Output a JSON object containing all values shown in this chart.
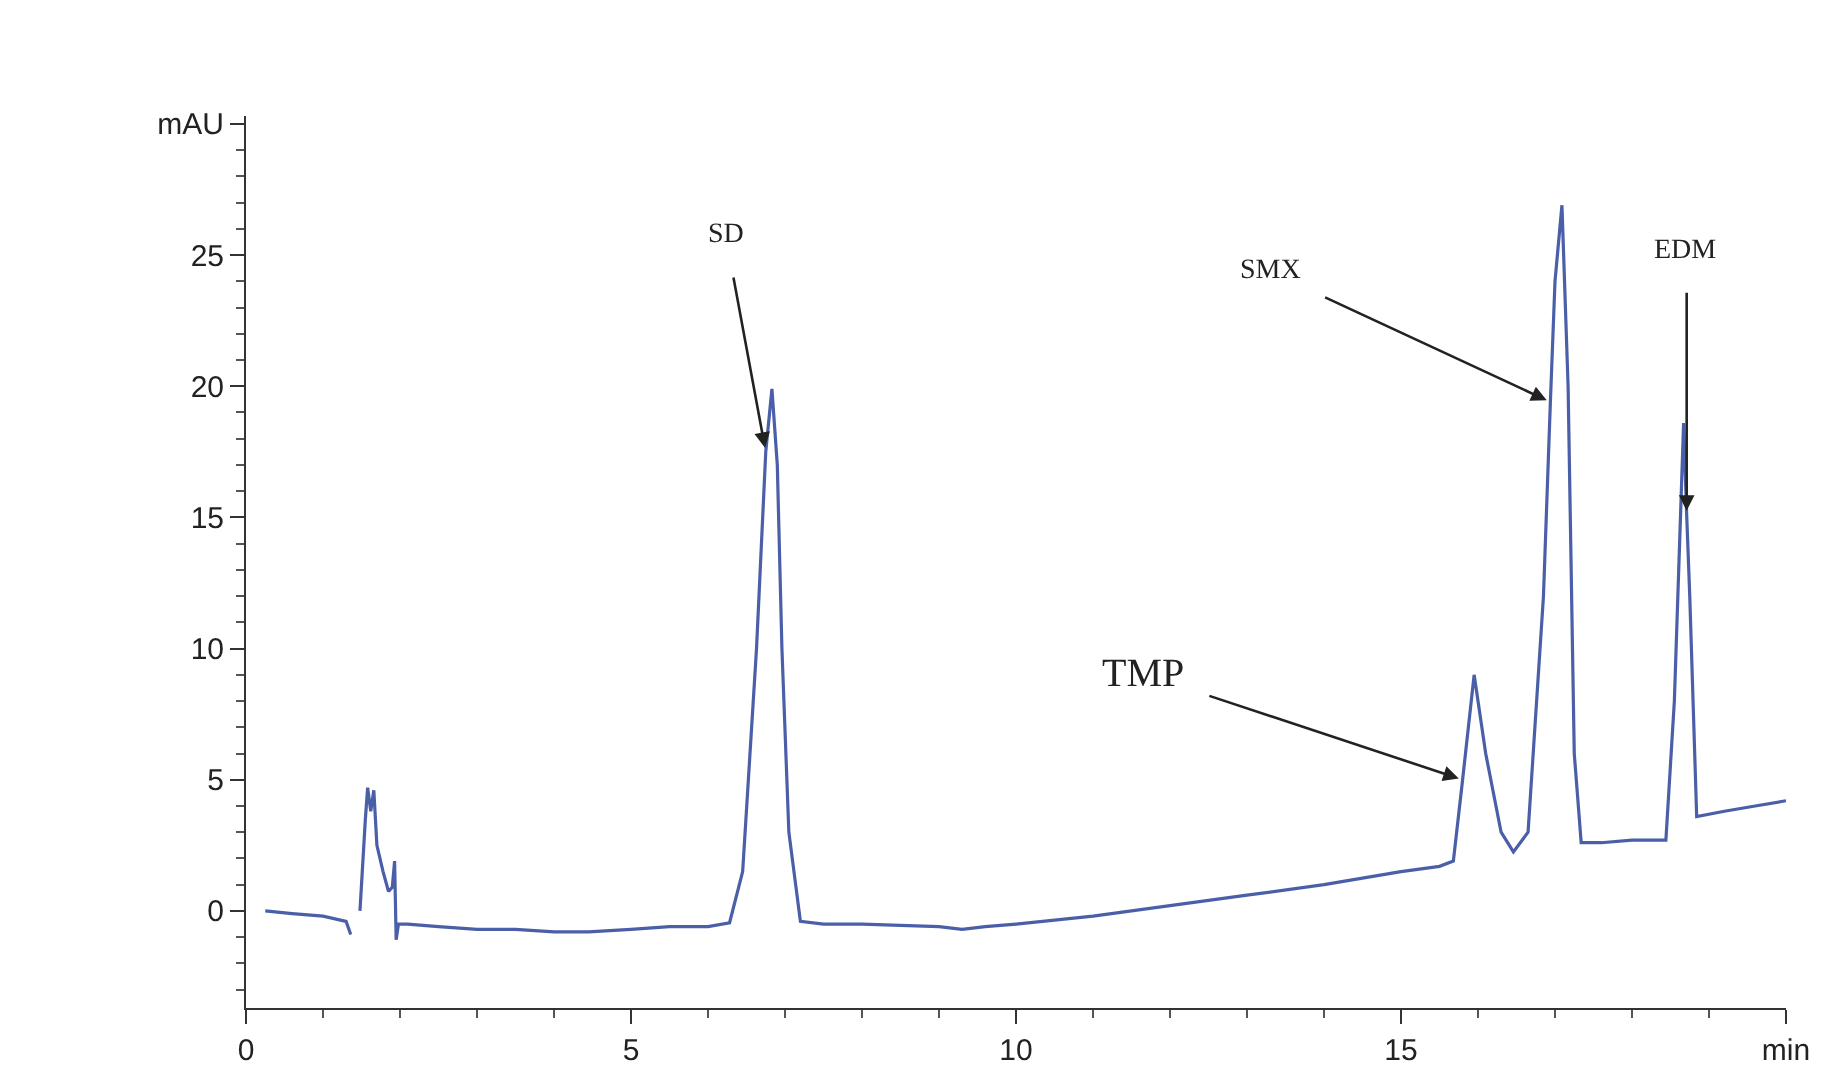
{
  "chart_data": {
    "type": "line",
    "color": "#4a5fa8",
    "x": [
      0.25,
      0.6,
      1.0,
      1.3,
      1.36,
      1.38,
      1.45,
      1.48,
      1.55,
      1.58,
      1.62,
      1.66,
      1.7,
      1.78,
      1.85,
      1.9,
      1.93,
      1.95,
      1.98,
      2.1,
      2.5,
      3.0,
      3.5,
      4.0,
      4.45,
      5.0,
      5.5,
      6.0,
      6.28,
      6.45,
      6.63,
      6.75,
      6.83,
      6.9,
      6.96,
      7.05,
      7.2,
      7.5,
      8.0,
      8.5,
      9.0,
      9.3,
      9.6,
      10.0,
      11.0,
      12.0,
      13.0,
      14.0,
      15.0,
      15.5,
      15.68,
      15.8,
      15.95,
      16.1,
      16.3,
      16.46,
      16.65,
      16.85,
      16.94,
      17.0,
      17.09,
      17.17,
      17.25,
      17.34,
      17.6,
      18.0,
      18.44,
      18.55,
      18.67,
      18.71,
      18.75,
      18.84,
      19.2,
      19.6,
      20.0
    ],
    "values": [
      0,
      -0.1,
      -0.2,
      -0.4,
      -0.9,
      null,
      null,
      0,
      3.5,
      4.7,
      3.8,
      4.6,
      2.5,
      1.5,
      0.75,
      0.9,
      1.9,
      -1.1,
      -0.5,
      -0.5,
      -0.6,
      -0.7,
      -0.7,
      -0.8,
      -0.8,
      -0.7,
      -0.6,
      -0.6,
      -0.45,
      1.5,
      10,
      17.5,
      19.9,
      17,
      10,
      3,
      -0.4,
      -0.5,
      -0.5,
      -0.55,
      -0.6,
      -0.7,
      -0.6,
      -0.5,
      -0.2,
      0.2,
      0.6,
      1.0,
      1.5,
      1.7,
      1.9,
      5,
      9.0,
      6,
      3,
      2.25,
      3,
      12,
      19.4,
      24,
      26.9,
      20,
      6,
      2.6,
      2.6,
      2.7,
      2.7,
      8,
      18.6,
      15.1,
      12,
      3.6,
      3.8,
      4.0,
      4.2
    ],
    "xlim": [
      0,
      20
    ],
    "ylim": [
      -3.7,
      30.3
    ],
    "xticks": [
      0,
      5,
      10,
      15,
      {
        "value": 20,
        "label": "min"
      }
    ],
    "yticks": [
      0,
      5,
      10,
      15,
      20,
      25,
      {
        "value": 30,
        "label": "mAU"
      }
    ],
    "marker": "none",
    "line_style": "solid",
    "annotations": [
      {
        "text": "SD",
        "x": 6.75,
        "y": 17.5
      },
      {
        "text": "TMP",
        "x": 15.8,
        "y": 5
      },
      {
        "text": "SMX",
        "x": 16.94,
        "y": 19.4
      },
      {
        "text": "EDM",
        "x": 18.71,
        "y": 15.1
      }
    ]
  }
}
